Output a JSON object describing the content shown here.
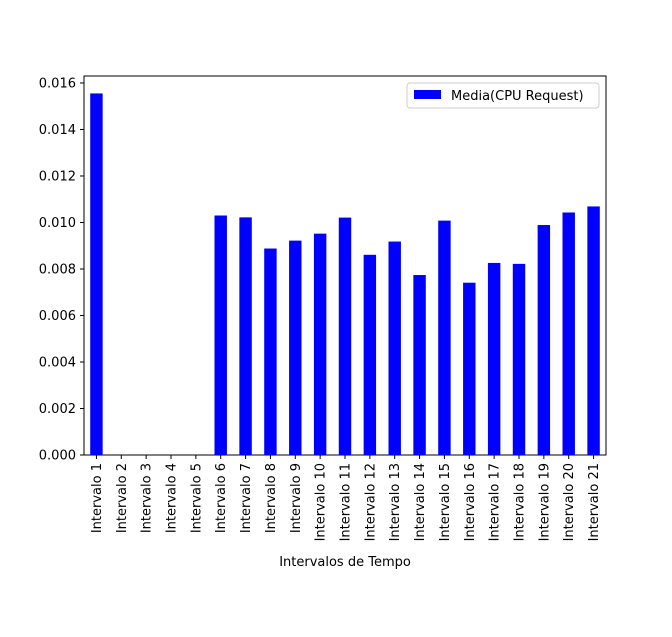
{
  "chart_data": {
    "type": "bar",
    "title": "",
    "xlabel": "Intervalos de Tempo",
    "ylabel": "",
    "categories": [
      "Intervalo 1",
      "Intervalo 2",
      "Intervalo 3",
      "Intervalo 4",
      "Intervalo 5",
      "Intervalo 6",
      "Intervalo 7",
      "Intervalo 8",
      "Intervalo 9",
      "Intervalo 10",
      "Intervalo 11",
      "Intervalo 12",
      "Intervalo 13",
      "Intervalo 14",
      "Intervalo 15",
      "Intervalo 16",
      "Intervalo 17",
      "Intervalo 18",
      "Intervalo 19",
      "Intervalo 20",
      "Intervalo 21"
    ],
    "series": [
      {
        "name": "Media(CPU Request)",
        "color": "#0000ff",
        "values": [
          0.01555,
          0,
          0,
          0,
          0,
          0.0103,
          0.01022,
          0.00888,
          0.00922,
          0.00952,
          0.01021,
          0.00861,
          0.00918,
          0.00774,
          0.01008,
          0.00741,
          0.00826,
          0.00822,
          0.00989,
          0.01043,
          0.01069
        ]
      }
    ],
    "ylim": [
      0,
      0.0163
    ],
    "yticks": [
      "0.000",
      "0.002",
      "0.004",
      "0.006",
      "0.008",
      "0.010",
      "0.012",
      "0.014",
      "0.016"
    ],
    "grid": false,
    "legend_position": "top-right"
  }
}
